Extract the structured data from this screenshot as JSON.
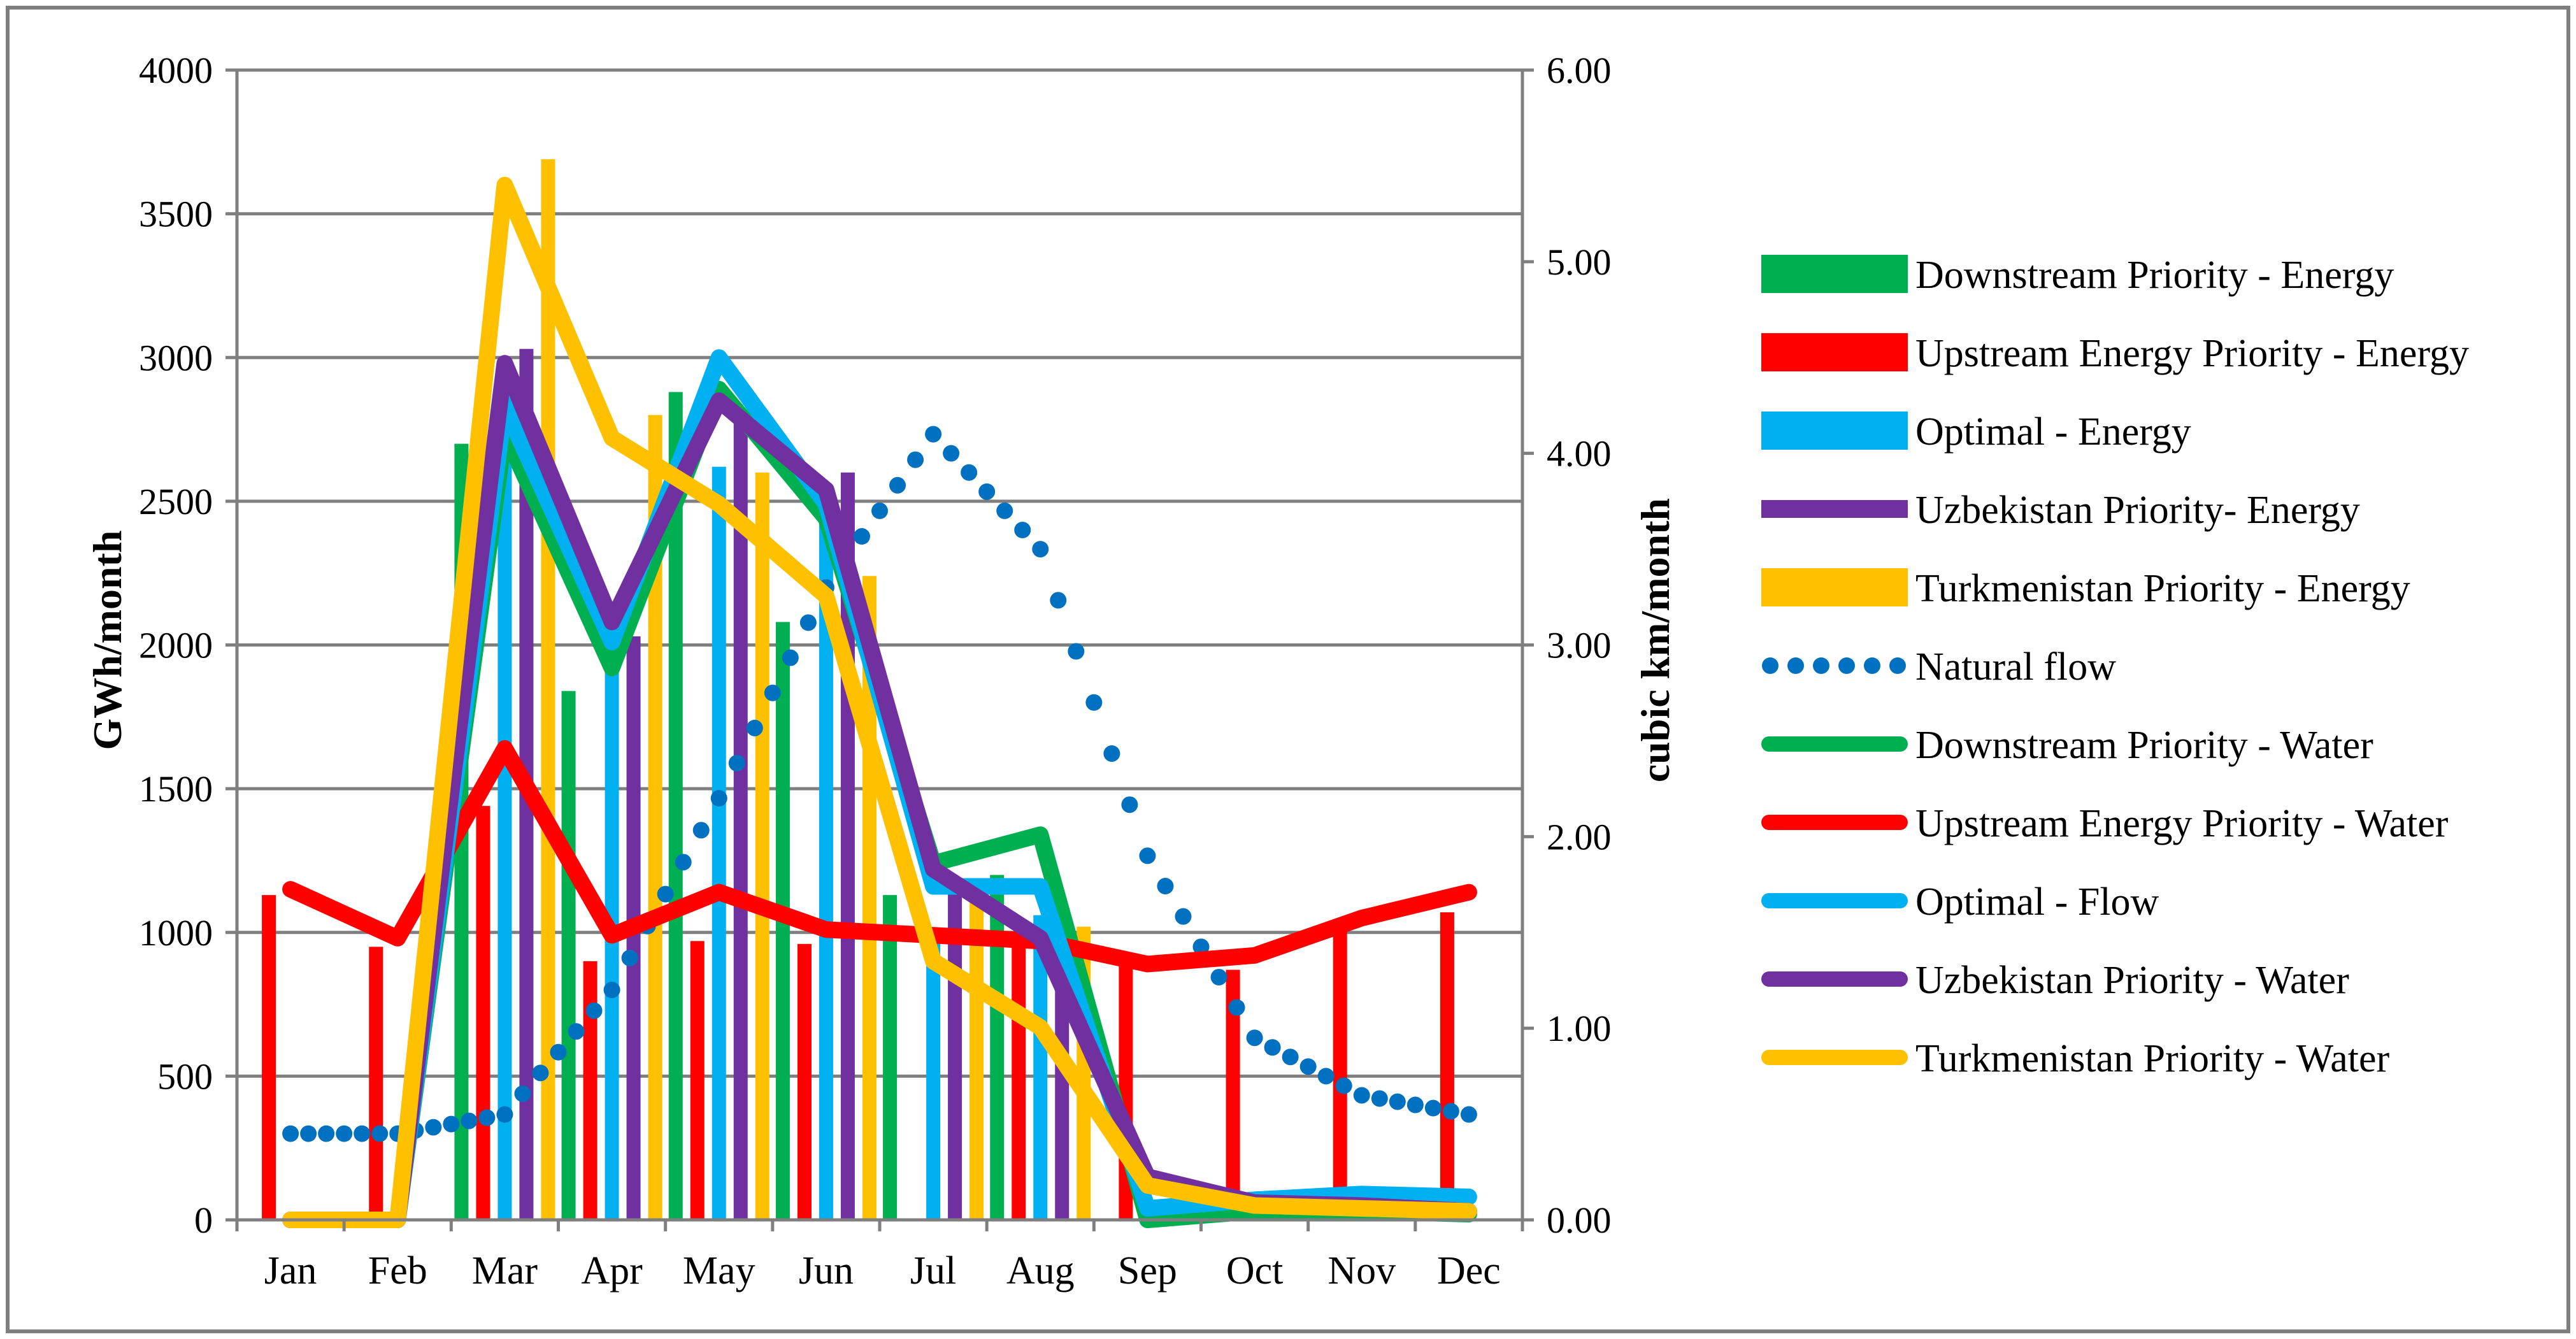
{
  "chart_data": {
    "type": "bar+line",
    "categories": [
      "Jan",
      "Feb",
      "Mar",
      "Apr",
      "May",
      "Jun",
      "Jul",
      "Aug",
      "Sep",
      "Oct",
      "Nov",
      "Dec"
    ],
    "y_left": {
      "label": "GWh/month",
      "min": 0,
      "max": 4000,
      "ticks": [
        "0",
        "500",
        "1000",
        "1500",
        "2000",
        "2500",
        "3000",
        "3500",
        "4000"
      ]
    },
    "y_right": {
      "label": "cubic km/month",
      "min": 0,
      "max": 6,
      "ticks": [
        "0.00",
        "1.00",
        "2.00",
        "3.00",
        "4.00",
        "5.00",
        "6.00"
      ]
    },
    "grid": true,
    "bar_series": [
      {
        "name": "Downstream Priority  - Energy",
        "color": "#00b050",
        "values": [
          0,
          0,
          2700,
          1840,
          2880,
          2080,
          1130,
          1200,
          0,
          0,
          0,
          0
        ]
      },
      {
        "name": "Upstream Energy Priority - Energy",
        "color": "#ff0000",
        "values": [
          1130,
          950,
          1440,
          900,
          970,
          960,
          0,
          950,
          900,
          870,
          1020,
          1070
        ]
      },
      {
        "name": "Optimal - Energy",
        "color": "#00b0f0",
        "values": [
          0,
          0,
          2900,
          1940,
          2620,
          2430,
          1000,
          1060,
          0,
          0,
          0,
          0
        ]
      },
      {
        "name": "Uzbekistan Priority- Energy",
        "color": "#7030a0",
        "values": [
          0,
          0,
          3030,
          2030,
          2810,
          2600,
          1150,
          1020,
          0,
          0,
          0,
          0
        ]
      },
      {
        "name": "Turkmenistan Priority - Energy",
        "color": "#ffc000",
        "values": [
          0,
          0,
          3690,
          2800,
          2600,
          2240,
          1130,
          1020,
          0,
          0,
          0,
          0
        ]
      }
    ],
    "line_series": [
      {
        "name": "Natural flow",
        "color": "#0070c0",
        "style": "dotted",
        "axis": "right",
        "values": [
          0.45,
          0.45,
          0.55,
          1.2,
          2.2,
          3.3,
          4.1,
          3.5,
          1.9,
          0.95,
          0.65,
          0.55
        ]
      },
      {
        "name": "Downstream Priority - Water",
        "color": "#00b050",
        "style": "solid",
        "axis": "left",
        "values": [
          0,
          0,
          2740,
          1920,
          2890,
          2440,
          1240,
          1340,
          0,
          30,
          30,
          20
        ]
      },
      {
        "name": "Upstream Energy Priority - Water",
        "color": "#ff0000",
        "style": "solid",
        "axis": "left",
        "values": [
          1150,
          980,
          1640,
          990,
          1140,
          1010,
          990,
          970,
          890,
          920,
          1050,
          1140
        ]
      },
      {
        "name": "Optimal - Flow",
        "color": "#00b0f0",
        "style": "solid",
        "axis": "left",
        "values": [
          0,
          0,
          2830,
          2010,
          3000,
          2490,
          1160,
          1160,
          40,
          70,
          90,
          80
        ]
      },
      {
        "name": "Uzbekistan Priority - Water",
        "color": "#7030a0",
        "style": "solid",
        "axis": "left",
        "values": [
          0,
          0,
          2980,
          2080,
          2850,
          2540,
          1220,
          980,
          150,
          60,
          50,
          30
        ]
      },
      {
        "name": "Turkmenistan Priority - Water",
        "color": "#ffc000",
        "style": "solid",
        "axis": "left",
        "values": [
          0,
          0,
          3600,
          2720,
          2490,
          2170,
          900,
          670,
          120,
          50,
          40,
          30
        ]
      }
    ],
    "legend": {
      "position": "right",
      "items": [
        {
          "label": "Downstream Priority  - Energy",
          "color": "#00b050",
          "marker": "bar"
        },
        {
          "label": "Upstream Energy Priority - Energy",
          "color": "#ff0000",
          "marker": "bar"
        },
        {
          "label": "Optimal - Energy",
          "color": "#00b0f0",
          "marker": "bar"
        },
        {
          "label": "Uzbekistan Priority- Energy",
          "color": "#7030a0",
          "marker": "thinbar"
        },
        {
          "label": "Turkmenistan Priority - Energy",
          "color": "#ffc000",
          "marker": "bar"
        },
        {
          "label": "Natural flow",
          "color": "#0070c0",
          "marker": "dotted"
        },
        {
          "label": "Downstream Priority - Water",
          "color": "#00b050",
          "marker": "line"
        },
        {
          "label": "Upstream Energy Priority - Water",
          "color": "#ff0000",
          "marker": "line"
        },
        {
          "label": "Optimal - Flow",
          "color": "#00b0f0",
          "marker": "line"
        },
        {
          "label": "Uzbekistan Priority - Water",
          "color": "#7030a0",
          "marker": "line"
        },
        {
          "label": "Turkmenistan Priority - Water",
          "color": "#ffc000",
          "marker": "line"
        }
      ]
    }
  }
}
